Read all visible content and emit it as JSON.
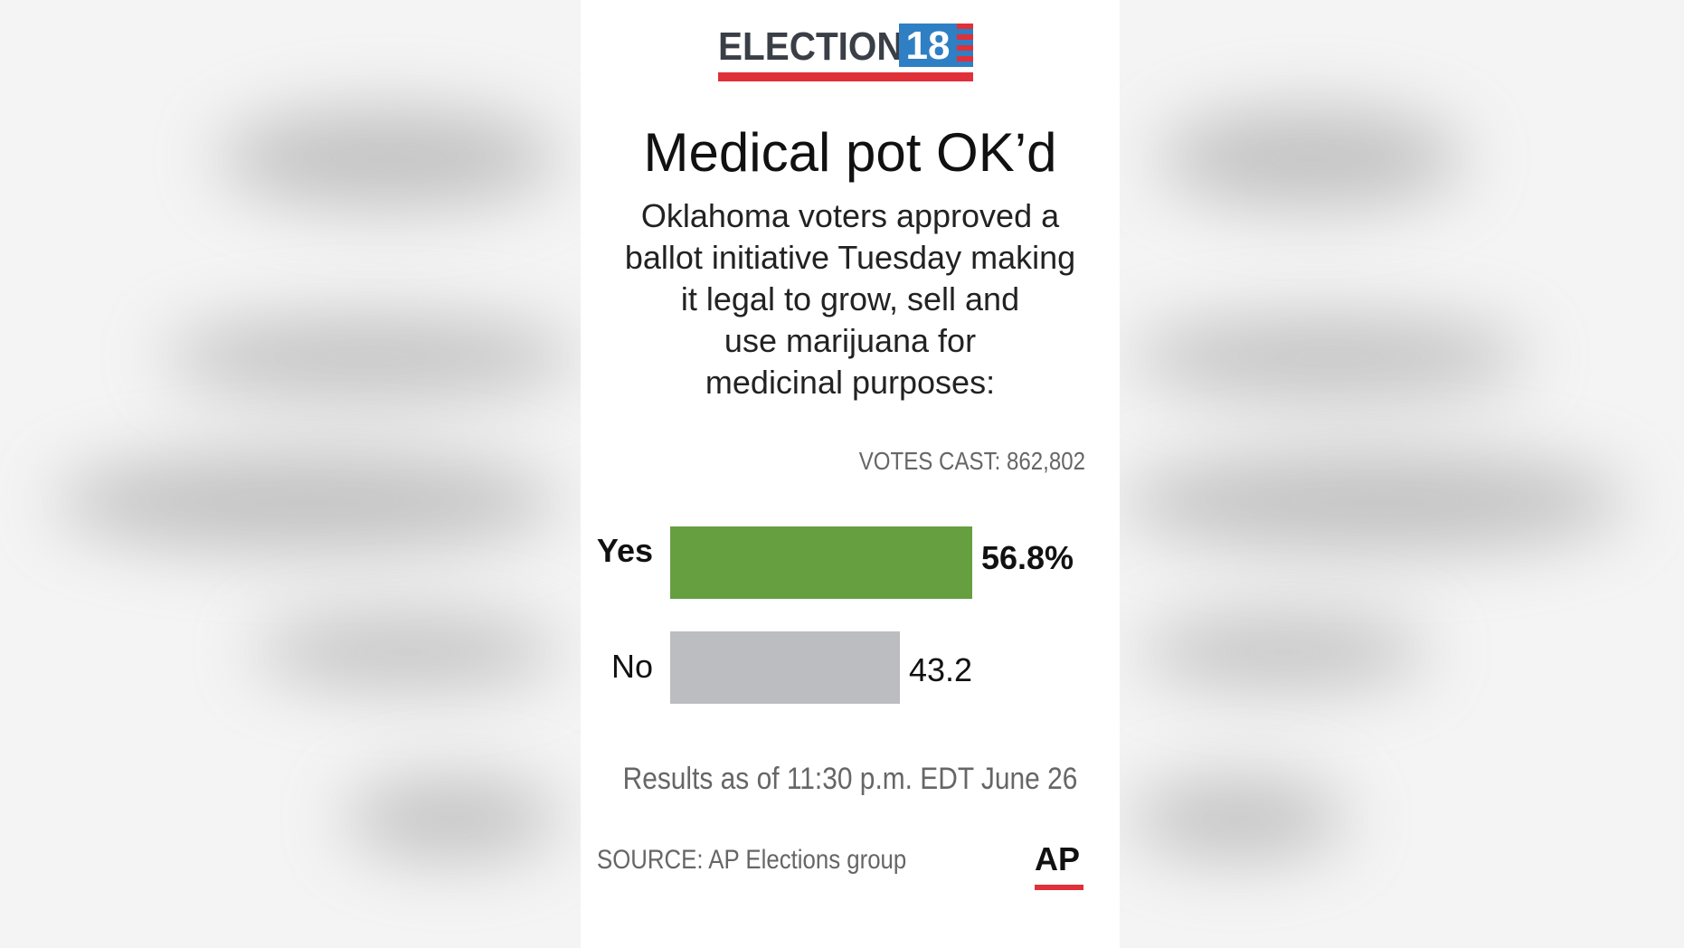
{
  "logo": {
    "text": "ELECTION",
    "number": "18"
  },
  "chart_data": {
    "type": "bar",
    "orientation": "horizontal",
    "title": "Medical pot OK’d",
    "subtitle_lines": [
      "Oklahoma voters approved a",
      "ballot initiative Tuesday making",
      "it legal to grow, sell and",
      "use marijuana for",
      "medicinal purposes:"
    ],
    "votes_cast": "VOTES CAST: 862,802",
    "categories": [
      "Yes",
      "No"
    ],
    "values": [
      56.8,
      43.2
    ],
    "value_labels": [
      "56.8%",
      "43.2"
    ],
    "colors": [
      "#659f40",
      "#bcbdc0"
    ],
    "xlim": [
      0,
      100
    ],
    "grid": false,
    "legend": "none"
  },
  "footer": {
    "note": "Results as of 11:30 p.m. EDT June 26",
    "source": "SOURCE: AP Elections group",
    "brand": "AP"
  }
}
